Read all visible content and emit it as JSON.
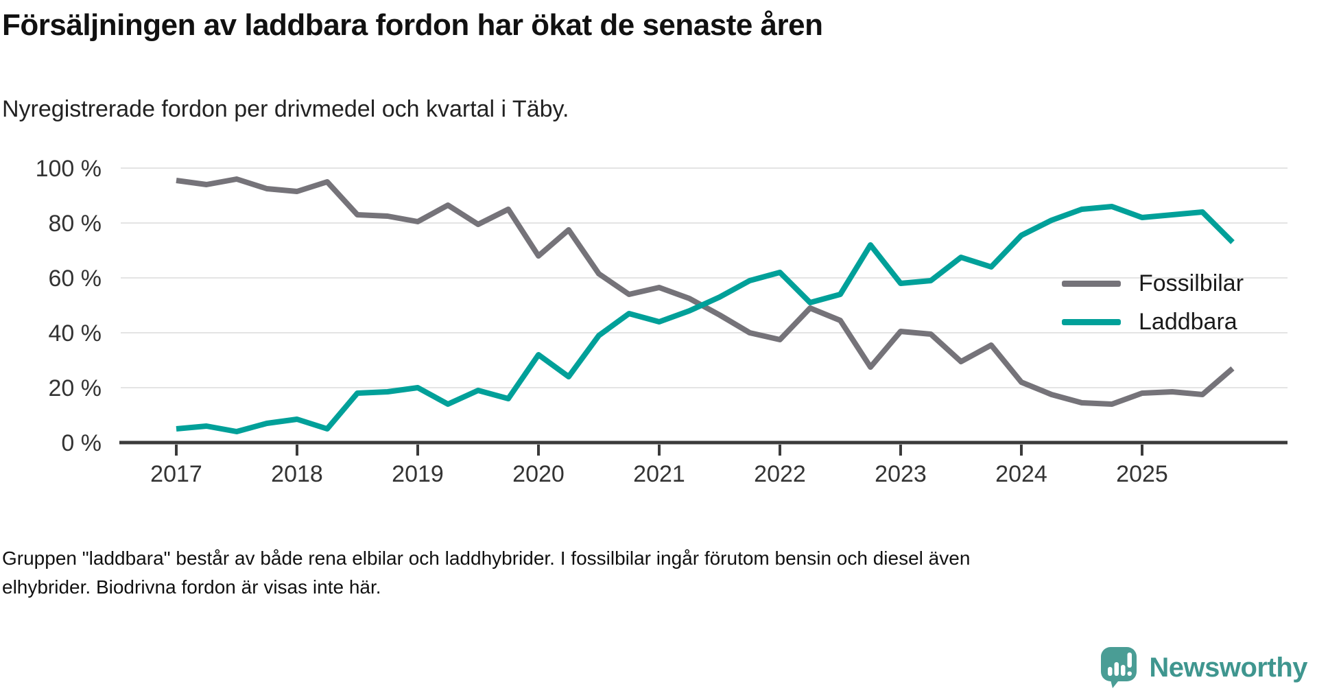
{
  "header": {
    "title": "Försäljningen av laddbara fordon har ökat de senaste åren",
    "subtitle": "Nyregistrerade fordon per drivmedel och kvartal i Täby."
  },
  "footer": {
    "note": "Gruppen \"laddbara\" består av både rena elbilar och laddhybrider. I fossilbilar ingår förutom bensin och diesel även elhybrider. Biodrivna fordon är visas inte här.",
    "brand": "Newsworthy"
  },
  "colors": {
    "fossil_line": "#757379",
    "chargeable_line": "#00a099",
    "gridline": "#e4e4e4",
    "axis": "#3b3b3b",
    "logo_teal": "#4a9d95",
    "logo_text_teal": "#3f968f"
  },
  "chart_data": {
    "type": "line",
    "title": "Försäljningen av laddbara fordon har ökat de senaste åren",
    "subtitle": "Nyregistrerade fordon per drivmedel och kvartal i Täby.",
    "xlabel": "",
    "ylabel": "",
    "ylim": [
      0,
      100
    ],
    "grid": "horizontal",
    "legend_position": "right",
    "categories": [
      "2017K1",
      "2017K2",
      "2017K3",
      "2017K4",
      "2018K1",
      "2018K2",
      "2018K3",
      "2018K4",
      "2019K1",
      "2019K2",
      "2019K3",
      "2019K4",
      "2020K1",
      "2020K2",
      "2020K3",
      "2020K4",
      "2021K1",
      "2021K2",
      "2021K3",
      "2021K4",
      "2022K1",
      "2022K2",
      "2022K3",
      "2022K4",
      "2023K1",
      "2023K2",
      "2023K3",
      "2023K4",
      "2024K1",
      "2024K2",
      "2024K3",
      "2024K4",
      "2025K1",
      "2025K2",
      "2025K3",
      "2025K4"
    ],
    "series": [
      {
        "name": "Fossilbilar",
        "color": "#757379",
        "values": [
          95.5,
          94,
          96,
          92.5,
          91.5,
          95,
          83,
          82.5,
          80.5,
          86.5,
          79.5,
          85,
          68,
          77.5,
          61.5,
          54,
          56.5,
          52.5,
          46.5,
          40,
          37.5,
          49,
          44.5,
          27.5,
          40.5,
          39.5,
          29.5,
          35.5,
          22,
          17.5,
          14.5,
          14,
          18,
          18.5,
          17.5,
          27
        ]
      },
      {
        "name": "Laddbara",
        "color": "#00a099",
        "values": [
          5,
          6,
          4,
          7,
          8.5,
          5,
          18,
          18.5,
          20,
          14,
          19,
          16,
          32,
          24,
          39,
          47,
          44,
          48,
          53,
          59,
          62,
          51,
          54,
          72,
          58,
          59,
          67.5,
          64,
          75.5,
          81,
          85,
          86,
          82,
          83,
          84,
          73
        ]
      }
    ],
    "y_ticks": [
      {
        "label": "100 %",
        "value": 100
      },
      {
        "label": "80 %",
        "value": 80
      },
      {
        "label": "60 %",
        "value": 60
      },
      {
        "label": "40 %",
        "value": 40
      },
      {
        "label": "20 %",
        "value": 20
      },
      {
        "label": "0 %",
        "value": 0
      }
    ],
    "x_ticks": [
      {
        "label": "2017",
        "quarter_index": 0
      },
      {
        "label": "2018",
        "quarter_index": 4
      },
      {
        "label": "2019",
        "quarter_index": 8
      },
      {
        "label": "2020",
        "quarter_index": 12
      },
      {
        "label": "2021",
        "quarter_index": 16
      },
      {
        "label": "2022",
        "quarter_index": 20
      },
      {
        "label": "2023",
        "quarter_index": 24
      },
      {
        "label": "2024",
        "quarter_index": 28
      },
      {
        "label": "2025",
        "quarter_index": 32
      }
    ]
  }
}
